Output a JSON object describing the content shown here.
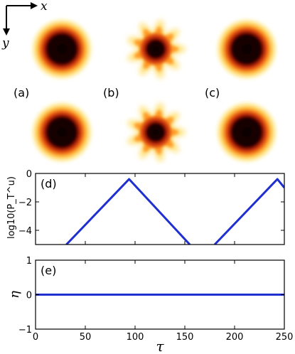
{
  "axes_indicator": {
    "x_label": "x",
    "y_label": "y"
  },
  "colors": {
    "curve": "#1f2fd0",
    "spot_core": "#1a0000",
    "spot_ring": "#c81e0a",
    "spot_halo": "#ffe98a"
  },
  "panels_top": [
    {
      "label": "(a)",
      "shape": "round",
      "petals": 0
    },
    {
      "label": "(b)",
      "shape": "flower",
      "petals": 9
    },
    {
      "label": "(c)",
      "shape": "round",
      "petals": 0
    }
  ],
  "panels_bottom": [
    {
      "label": "",
      "shape": "round",
      "petals": 0
    },
    {
      "label": "",
      "shape": "flower",
      "petals": 9
    },
    {
      "label": "",
      "shape": "round",
      "petals": 0
    }
  ],
  "chart_data": [
    {
      "type": "line",
      "panel_label": "(d)",
      "ylabel": "log10(P_T^u)",
      "xlim": [
        0,
        250
      ],
      "ylim": [
        -5,
        0
      ],
      "yticks": [
        "0",
        "−2",
        "−4"
      ],
      "ytick_values": [
        0,
        -2,
        -4
      ],
      "series": [
        {
          "x": [
            31,
            94,
            155
          ],
          "y": [
            -5,
            -0.4,
            -5
          ]
        },
        {
          "x": [
            180,
            243,
            250
          ],
          "y": [
            -5,
            -0.4,
            -1.0
          ]
        }
      ]
    },
    {
      "type": "line",
      "panel_label": "(e)",
      "ylabel": "η",
      "xlabel": "τ",
      "xlim": [
        0,
        250
      ],
      "ylim": [
        -1,
        1
      ],
      "xticks": [
        "0",
        "50",
        "100",
        "150",
        "200",
        "250"
      ],
      "xtick_values": [
        0,
        50,
        100,
        150,
        200,
        250
      ],
      "yticks": [
        "1",
        "0",
        "−1"
      ],
      "ytick_values": [
        1,
        0,
        -1
      ],
      "series": [
        {
          "x": [
            0,
            250
          ],
          "y": [
            0,
            0
          ]
        }
      ]
    }
  ]
}
